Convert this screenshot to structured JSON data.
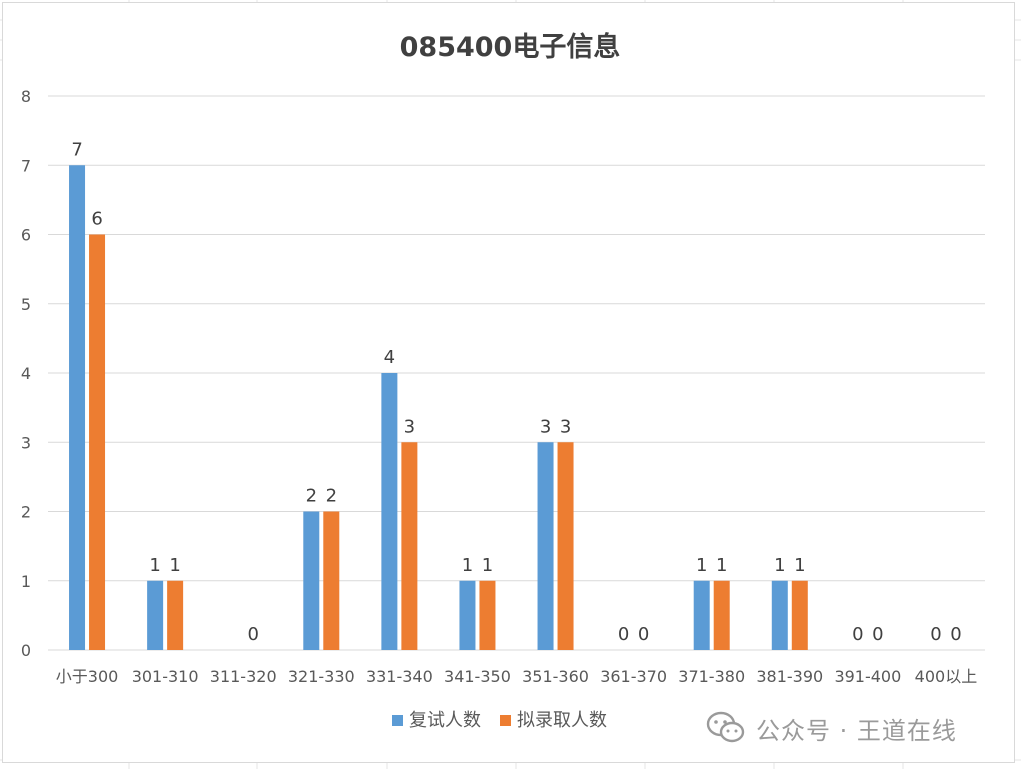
{
  "watermark": {
    "text": "公众号 · 王道在线",
    "icon": "wechat-icon"
  },
  "colors": {
    "series1": "#5b9bd5",
    "series2": "#ed7d31",
    "gridline": "#d9d9d9",
    "axis": "#d9d9d9"
  },
  "chart_data": {
    "type": "bar",
    "title": "085400电子信息",
    "xlabel": "",
    "ylabel": "",
    "ylim": [
      0,
      8
    ],
    "yticks": [
      0,
      1,
      2,
      3,
      4,
      5,
      6,
      7,
      8
    ],
    "grid": true,
    "legend_position": "bottom",
    "categories": [
      "小于300",
      "301-310",
      "311-320",
      "321-330",
      "331-340",
      "341-350",
      "351-360",
      "361-370",
      "371-380",
      "381-390",
      "391-400",
      "400以上"
    ],
    "series": [
      {
        "name": "复试人数",
        "values": [
          7,
          1,
          null,
          2,
          4,
          1,
          3,
          0,
          1,
          1,
          0,
          0
        ]
      },
      {
        "name": "拟录取人数",
        "values": [
          6,
          1,
          0,
          2,
          3,
          1,
          3,
          0,
          1,
          1,
          0,
          0
        ]
      }
    ]
  }
}
